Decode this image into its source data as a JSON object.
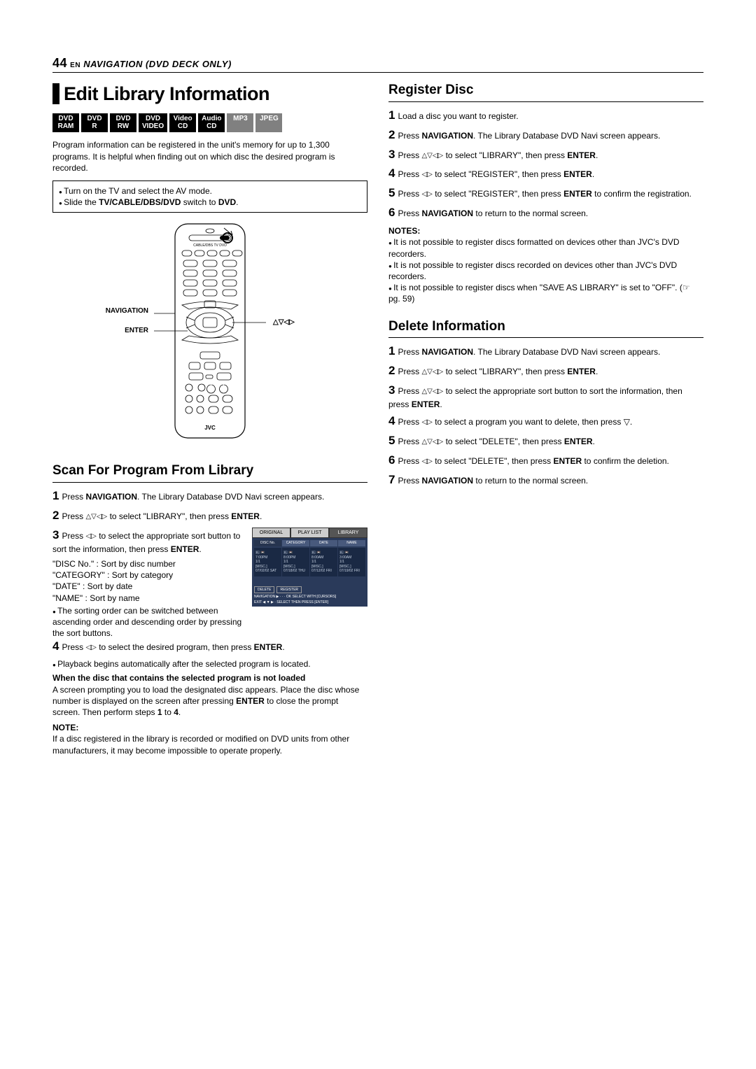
{
  "header": {
    "page_num": "44",
    "lang": "EN",
    "section": "NAVIGATION (DVD DECK ONLY)"
  },
  "title": "Edit Library Information",
  "badges": [
    {
      "t1": "DVD",
      "t2": "RAM",
      "grey": false
    },
    {
      "t1": "DVD",
      "t2": "R",
      "grey": false
    },
    {
      "t1": "DVD",
      "t2": "RW",
      "grey": false
    },
    {
      "t1": "DVD",
      "t2": "VIDEO",
      "grey": false
    },
    {
      "t1": "Video",
      "t2": "CD",
      "grey": false
    },
    {
      "t1": "Audio",
      "t2": "CD",
      "grey": false
    },
    {
      "t1": "MP3",
      "t2": "",
      "grey": true
    },
    {
      "t1": "JPEG",
      "t2": "",
      "grey": true
    }
  ],
  "intro": "Program information can be registered in the unit's memory for up to 1,300 programs. It is helpful when finding out on which disc the desired program is recorded.",
  "prep": [
    "Turn on the TV and select the AV mode.",
    "Slide the <b>TV/CABLE/DBS/DVD</b> switch to <b>DVD</b>."
  ],
  "remote": {
    "nav_label": "NAVIGATION",
    "enter_label": "ENTER",
    "dir_label": "△▽◁▷",
    "switch_label": "CABLE/DBS   TV       DVD",
    "brand": "JVC"
  },
  "scan": {
    "head": "Scan For Program From Library",
    "s1": "Press <b>NAVIGATION</b>. The Library Database DVD Navi screen appears.",
    "s2_a": "Press ",
    "s2_b": " to select \"LIBRARY\", then press <b>ENTER</b>.",
    "s3_a": "Press ",
    "s3_b": " to select the appropriate sort button to sort the information, then press <b>ENTER</b>.",
    "s3_lines": "\"DISC No.\" : Sort by disc number<br>\"CATEGORY\" : Sort by category<br>\"DATE\" : Sort by date<br>\"NAME\" : Sort by name",
    "s3_note": "The sorting order can be switched between ascending order and descending order by pressing the sort buttons.",
    "s4_a": "Press ",
    "s4_b": " to select the desired program, then press <b>ENTER</b>.",
    "s4_note": "Playback begins automatically after the selected program is located.",
    "bold": "When the disc that contains the selected program is not loaded",
    "bold_body": "A screen prompting you to load the designated disc appears. Place the disc whose number is displayed on the screen after pressing <b>ENTER</b> to close the prompt screen. Then perform steps <b>1</b> to <b>4</b>.",
    "note_head": "NOTE:",
    "final_note": "If a disc registered in the library is recorded or modified on DVD units from other manufacturers, it may become impossible to operate properly."
  },
  "sshot": {
    "tabs": [
      "ORIGINAL",
      "PLAY LIST",
      "LIBRARY"
    ],
    "subtabs": [
      "DISC No.",
      "CATEGORY",
      "DATE",
      "NAME"
    ],
    "cells": [
      [
        "7:00PM",
        "1/1",
        "[MISC.]",
        "07/02/02 SAT"
      ],
      [
        "8:00PM",
        "1/1",
        "[MISC.]",
        "07/18/02 THU"
      ],
      [
        "8:00AM",
        "1/1",
        "[MISC.]",
        "07/12/02 FRI"
      ],
      [
        "3:00AM",
        "1/1",
        "[MISC.]",
        "07/19/02 FRI"
      ]
    ],
    "btns": [
      "DELETE",
      "REGISTER"
    ],
    "foot1": "NAVIGATION   ▶ · · · OK      SELECT WITH [CURSORS]",
    "foot2": "EXIT            ◀ ▼ ▶ · SELECT  THEN PRESS [ENTER]"
  },
  "reg": {
    "head": "Register Disc",
    "s1": "Load a disc you want to register.",
    "s2": "Press <b>NAVIGATION</b>. The Library Database DVD Navi screen appears.",
    "s3_a": "Press ",
    "s3_b": " to select \"LIBRARY\", then press <b>ENTER</b>.",
    "s4_a": "Press ",
    "s4_b": " to select \"REGISTER\", then press <b>ENTER</b>.",
    "s5_a": "Press ",
    "s5_b": " to select \"REGISTER\", then press <b>ENTER</b> to confirm the registration.",
    "s6": "Press <b>NAVIGATION</b> to return to the normal screen.",
    "notes_head": "NOTES:",
    "notes": [
      "It is not possible to register discs formatted on devices other than JVC's DVD recorders.",
      "It is not possible to register discs recorded on devices other than JVC's DVD recorders.",
      "It is not possible to register discs when \"SAVE AS LIBRARY\" is set to \"OFF\". (☞ pg. 59)"
    ]
  },
  "del": {
    "head": "Delete Information",
    "s1": "Press <b>NAVIGATION</b>. The Library Database DVD Navi screen appears.",
    "s2_a": "Press ",
    "s2_b": " to select \"LIBRARY\", then press <b>ENTER</b>.",
    "s3_a": "Press ",
    "s3_b": " to select the appropriate sort button to sort the information, then press <b>ENTER</b>.",
    "s4_a": "Press ",
    "s4_b": " to select a program you want to delete, then press ▽.",
    "s5_a": "Press ",
    "s5_b": " to select \"DELETE\", then press <b>ENTER</b>.",
    "s6_a": "Press ",
    "s6_b": " to select \"DELETE\", then press <b>ENTER</b> to confirm the deletion.",
    "s7": "Press <b>NAVIGATION</b> to return to the normal screen."
  },
  "glyphs": {
    "udlr": "△▽◁▷",
    "lr": "◁▷"
  }
}
